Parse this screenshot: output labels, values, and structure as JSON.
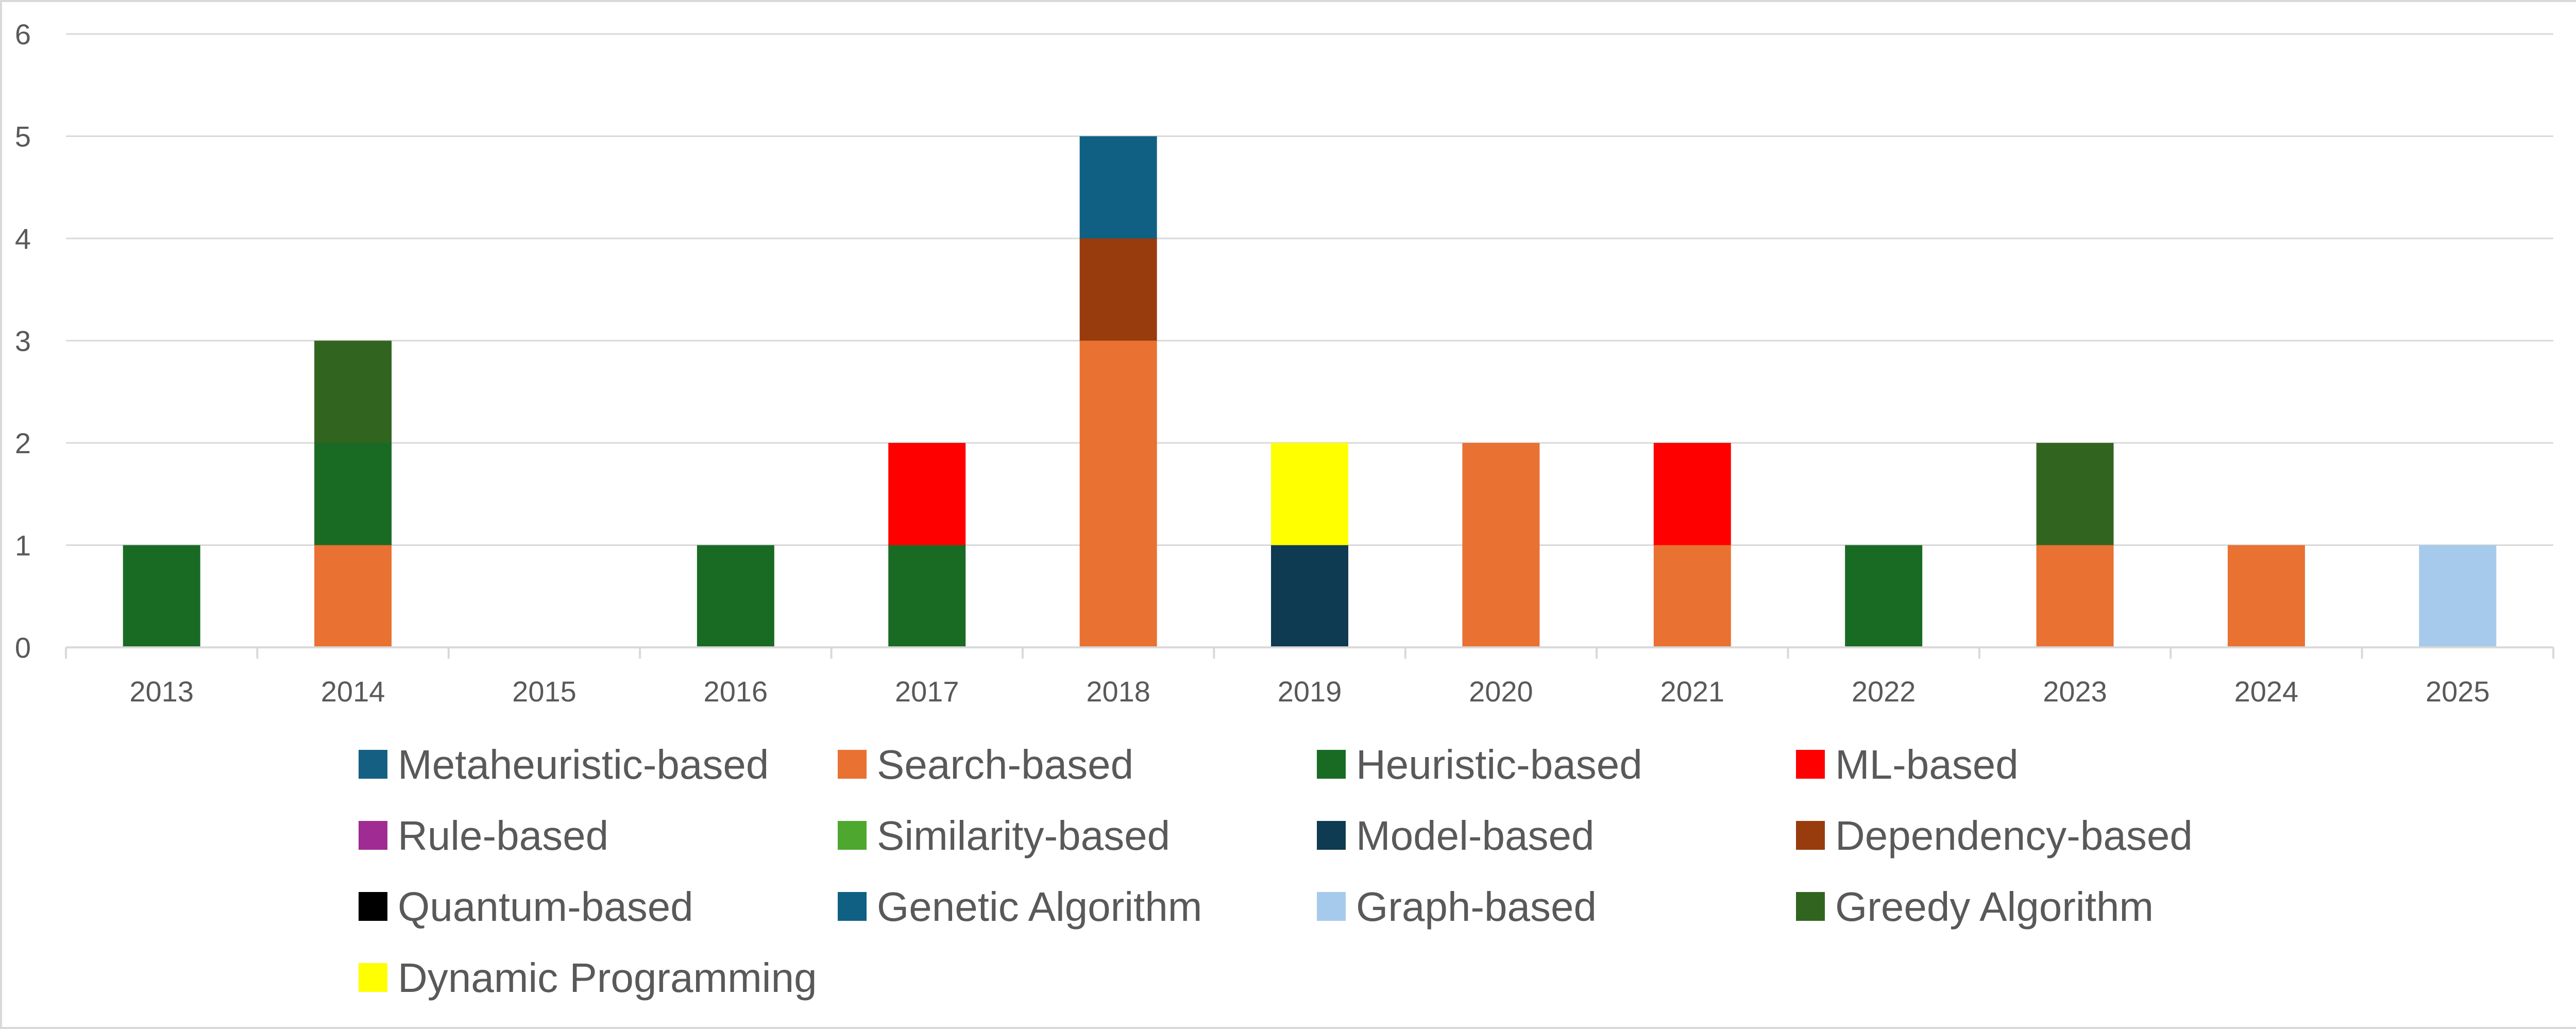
{
  "chart_data": {
    "type": "bar",
    "stacked": true,
    "title": "",
    "xlabel": "",
    "ylabel": "",
    "categories": [
      "2013",
      "2014",
      "2015",
      "2016",
      "2017",
      "2018",
      "2019",
      "2020",
      "2021",
      "2022",
      "2023",
      "2024",
      "2025"
    ],
    "ylim": [
      0,
      6
    ],
    "yticks": [
      0,
      1,
      2,
      3,
      4,
      5,
      6
    ],
    "grid": true,
    "legend_position": "bottom",
    "series": [
      {
        "name": "Metaheuristic-based",
        "color": "#156082",
        "values": [
          0,
          0,
          0,
          0,
          0,
          0,
          0,
          0,
          0,
          0,
          0,
          0,
          0
        ]
      },
      {
        "name": "Search-based",
        "color": "#E97132",
        "values": [
          0,
          1,
          0,
          0,
          0,
          3,
          0,
          2,
          1,
          0,
          1,
          1,
          0
        ]
      },
      {
        "name": "Heuristic-based",
        "color": "#196B24",
        "values": [
          1,
          1,
          0,
          1,
          1,
          0,
          0,
          0,
          0,
          1,
          0,
          0,
          0
        ]
      },
      {
        "name": "ML-based",
        "color": "#FF0000",
        "values": [
          0,
          0,
          0,
          0,
          1,
          0,
          0,
          0,
          1,
          0,
          0,
          0,
          0
        ]
      },
      {
        "name": "Rule-based",
        "color": "#A02B93",
        "values": [
          0,
          0,
          0,
          0,
          0,
          0,
          0,
          0,
          0,
          0,
          0,
          0,
          0
        ]
      },
      {
        "name": "Similarity-based",
        "color": "#4EA72E",
        "values": [
          0,
          0,
          0,
          0,
          0,
          0,
          0,
          0,
          0,
          0,
          0,
          0,
          0
        ]
      },
      {
        "name": "Model-based",
        "color": "#0E3A52",
        "values": [
          0,
          0,
          0,
          0,
          0,
          0,
          1,
          0,
          0,
          0,
          0,
          0,
          0
        ]
      },
      {
        "name": "Dependency-based",
        "color": "#983C0E",
        "values": [
          0,
          0,
          0,
          0,
          0,
          1,
          0,
          0,
          0,
          0,
          0,
          0,
          0
        ]
      },
      {
        "name": "Quantum-based",
        "color": "#000000",
        "values": [
          0,
          0,
          0,
          0,
          0,
          0,
          0,
          0,
          0,
          0,
          0,
          0,
          0
        ]
      },
      {
        "name": "Genetic Algorithm",
        "color": "#0F6083",
        "values": [
          0,
          0,
          0,
          0,
          0,
          1,
          0,
          0,
          0,
          0,
          0,
          0,
          0
        ]
      },
      {
        "name": "Graph-based",
        "color": "#A6CAEC",
        "values": [
          0,
          0,
          0,
          0,
          0,
          0,
          0,
          0,
          0,
          0,
          0,
          0,
          1
        ]
      },
      {
        "name": "Greedy Algorithm",
        "color": "#31651F",
        "values": [
          0,
          1,
          0,
          0,
          0,
          0,
          0,
          0,
          0,
          0,
          1,
          0,
          0
        ]
      },
      {
        "name": "Dynamic Programming",
        "color": "#FFFF00",
        "values": [
          0,
          0,
          0,
          0,
          0,
          0,
          1,
          0,
          0,
          0,
          0,
          0,
          0
        ]
      }
    ],
    "gridline_color": "#d9d9d9",
    "axis_color": "#d9d9d9"
  }
}
